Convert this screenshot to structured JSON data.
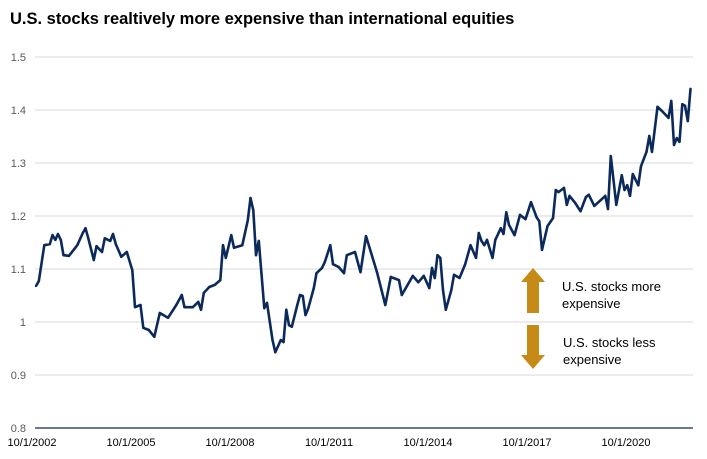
{
  "chart_data": {
    "type": "line",
    "title": "U.S. stocks realtively more expensive than international equities",
    "xlabel": "",
    "ylabel": "",
    "ylim": [
      0.8,
      1.5
    ],
    "yticks": [
      "0.8",
      "0.9",
      "1",
      "1.1",
      "1.2",
      "1.3",
      "1.4",
      "1.5"
    ],
    "xticks": [
      "10/1/2002",
      "10/1/2005",
      "10/1/2008",
      "10/1/2011",
      "10/1/2014",
      "10/1/2017",
      "10/1/2020"
    ],
    "grid": "horizontal",
    "line_color": "#0B2A5B",
    "annotations": {
      "up": {
        "line1": "U.S. stocks more",
        "line2": "expensive",
        "arrow_color": "#C68A16"
      },
      "down": {
        "line1": "U.S. stocks less",
        "line2": "expensive",
        "arrow_color": "#C68A16"
      }
    },
    "points": [
      [
        "2002-10",
        1.068
      ],
      [
        "2002-11",
        1.077
      ],
      [
        "2003-01",
        1.145
      ],
      [
        "2003-03",
        1.147
      ],
      [
        "2003-04",
        1.164
      ],
      [
        "2003-05",
        1.155
      ],
      [
        "2003-06",
        1.166
      ],
      [
        "2003-07",
        1.155
      ],
      [
        "2003-08",
        1.126
      ],
      [
        "2003-10",
        1.125
      ],
      [
        "2004-01",
        1.145
      ],
      [
        "2004-03",
        1.168
      ],
      [
        "2004-04",
        1.177
      ],
      [
        "2004-05",
        1.158
      ],
      [
        "2004-07",
        1.117
      ],
      [
        "2004-08",
        1.143
      ],
      [
        "2004-10",
        1.132
      ],
      [
        "2004-11",
        1.158
      ],
      [
        "2005-01",
        1.153
      ],
      [
        "2005-02",
        1.166
      ],
      [
        "2005-03",
        1.147
      ],
      [
        "2005-05",
        1.123
      ],
      [
        "2005-07",
        1.132
      ],
      [
        "2005-09",
        1.098
      ],
      [
        "2005-10",
        1.028
      ],
      [
        "2005-12",
        1.032
      ],
      [
        "2006-01",
        0.989
      ],
      [
        "2006-03",
        0.985
      ],
      [
        "2006-05",
        0.972
      ],
      [
        "2006-07",
        1.017
      ],
      [
        "2006-10",
        1.008
      ],
      [
        "2007-01",
        1.032
      ],
      [
        "2007-03",
        1.051
      ],
      [
        "2007-04",
        1.028
      ],
      [
        "2007-07",
        1.028
      ],
      [
        "2007-09",
        1.038
      ],
      [
        "2007-10",
        1.023
      ],
      [
        "2007-11",
        1.055
      ],
      [
        "2008-01",
        1.066
      ],
      [
        "2008-03",
        1.07
      ],
      [
        "2008-05",
        1.079
      ],
      [
        "2008-06",
        1.145
      ],
      [
        "2008-07",
        1.121
      ],
      [
        "2008-09",
        1.164
      ],
      [
        "2008-10",
        1.14
      ],
      [
        "2009-01",
        1.145
      ],
      [
        "2009-03",
        1.192
      ],
      [
        "2009-04",
        1.234
      ],
      [
        "2009-05",
        1.211
      ],
      [
        "2009-06",
        1.126
      ],
      [
        "2009-07",
        1.153
      ],
      [
        "2009-09",
        1.026
      ],
      [
        "2009-10",
        1.036
      ],
      [
        "2009-12",
        0.966
      ],
      [
        "2010-01",
        0.943
      ],
      [
        "2010-03",
        0.966
      ],
      [
        "2010-04",
        0.962
      ],
      [
        "2010-05",
        1.023
      ],
      [
        "2010-06",
        0.994
      ],
      [
        "2010-07",
        0.991
      ],
      [
        "2010-09",
        1.032
      ],
      [
        "2010-10",
        1.051
      ],
      [
        "2010-11",
        1.049
      ],
      [
        "2010-12",
        1.013
      ],
      [
        "2011-01",
        1.026
      ],
      [
        "2011-03",
        1.064
      ],
      [
        "2011-04",
        1.092
      ],
      [
        "2011-06",
        1.102
      ],
      [
        "2011-07",
        1.113
      ],
      [
        "2011-09",
        1.145
      ],
      [
        "2011-10",
        1.109
      ],
      [
        "2011-12",
        1.104
      ],
      [
        "2012-02",
        1.092
      ],
      [
        "2012-03",
        1.126
      ],
      [
        "2012-06",
        1.132
      ],
      [
        "2012-08",
        1.094
      ],
      [
        "2012-10",
        1.162
      ],
      [
        "2013-02",
        1.094
      ],
      [
        "2013-05",
        1.032
      ],
      [
        "2013-07",
        1.085
      ],
      [
        "2013-10",
        1.079
      ],
      [
        "2013-11",
        1.051
      ],
      [
        "2014-03",
        1.087
      ],
      [
        "2014-05",
        1.075
      ],
      [
        "2014-07",
        1.087
      ],
      [
        "2014-09",
        1.064
      ],
      [
        "2014-10",
        1.102
      ],
      [
        "2014-11",
        1.083
      ],
      [
        "2014-12",
        1.126
      ],
      [
        "2015-01",
        1.121
      ],
      [
        "2015-02",
        1.06
      ],
      [
        "2015-03",
        1.023
      ],
      [
        "2015-05",
        1.06
      ],
      [
        "2015-06",
        1.089
      ],
      [
        "2015-08",
        1.083
      ],
      [
        "2015-10",
        1.108
      ],
      [
        "2015-12",
        1.145
      ],
      [
        "2016-02",
        1.121
      ],
      [
        "2016-03",
        1.168
      ],
      [
        "2016-04",
        1.153
      ],
      [
        "2016-05",
        1.145
      ],
      [
        "2016-06",
        1.155
      ],
      [
        "2016-08",
        1.121
      ],
      [
        "2016-09",
        1.155
      ],
      [
        "2016-11",
        1.177
      ],
      [
        "2016-12",
        1.166
      ],
      [
        "2017-01",
        1.207
      ],
      [
        "2017-02",
        1.183
      ],
      [
        "2017-04",
        1.164
      ],
      [
        "2017-06",
        1.202
      ],
      [
        "2017-08",
        1.194
      ],
      [
        "2017-10",
        1.226
      ],
      [
        "2017-12",
        1.198
      ],
      [
        "2018-01",
        1.19
      ],
      [
        "2018-02",
        1.136
      ],
      [
        "2018-04",
        1.181
      ],
      [
        "2018-06",
        1.196
      ],
      [
        "2018-07",
        1.249
      ],
      [
        "2018-08",
        1.245
      ],
      [
        "2018-10",
        1.253
      ],
      [
        "2018-11",
        1.221
      ],
      [
        "2018-12",
        1.238
      ],
      [
        "2019-02",
        1.225
      ],
      [
        "2019-04",
        1.209
      ],
      [
        "2019-06",
        1.236
      ],
      [
        "2019-07",
        1.24
      ],
      [
        "2019-09",
        1.219
      ],
      [
        "2020-01",
        1.238
      ],
      [
        "2020-02",
        1.213
      ],
      [
        "2020-03",
        1.313
      ],
      [
        "2020-05",
        1.221
      ],
      [
        "2020-07",
        1.277
      ],
      [
        "2020-08",
        1.249
      ],
      [
        "2020-09",
        1.258
      ],
      [
        "2020-10",
        1.238
      ],
      [
        "2020-11",
        1.279
      ],
      [
        "2021-01",
        1.258
      ],
      [
        "2021-02",
        1.294
      ],
      [
        "2021-04",
        1.321
      ],
      [
        "2021-05",
        1.351
      ],
      [
        "2021-06",
        1.321
      ],
      [
        "2021-08",
        1.406
      ],
      [
        "2021-10",
        1.396
      ],
      [
        "2021-12",
        1.385
      ],
      [
        "2022-01",
        1.417
      ],
      [
        "2022-02",
        1.334
      ],
      [
        "2022-03",
        1.347
      ],
      [
        "2022-04",
        1.34
      ],
      [
        "2022-05",
        1.411
      ],
      [
        "2022-06",
        1.408
      ],
      [
        "2022-07",
        1.379
      ],
      [
        "2022-08",
        1.44
      ]
    ]
  }
}
